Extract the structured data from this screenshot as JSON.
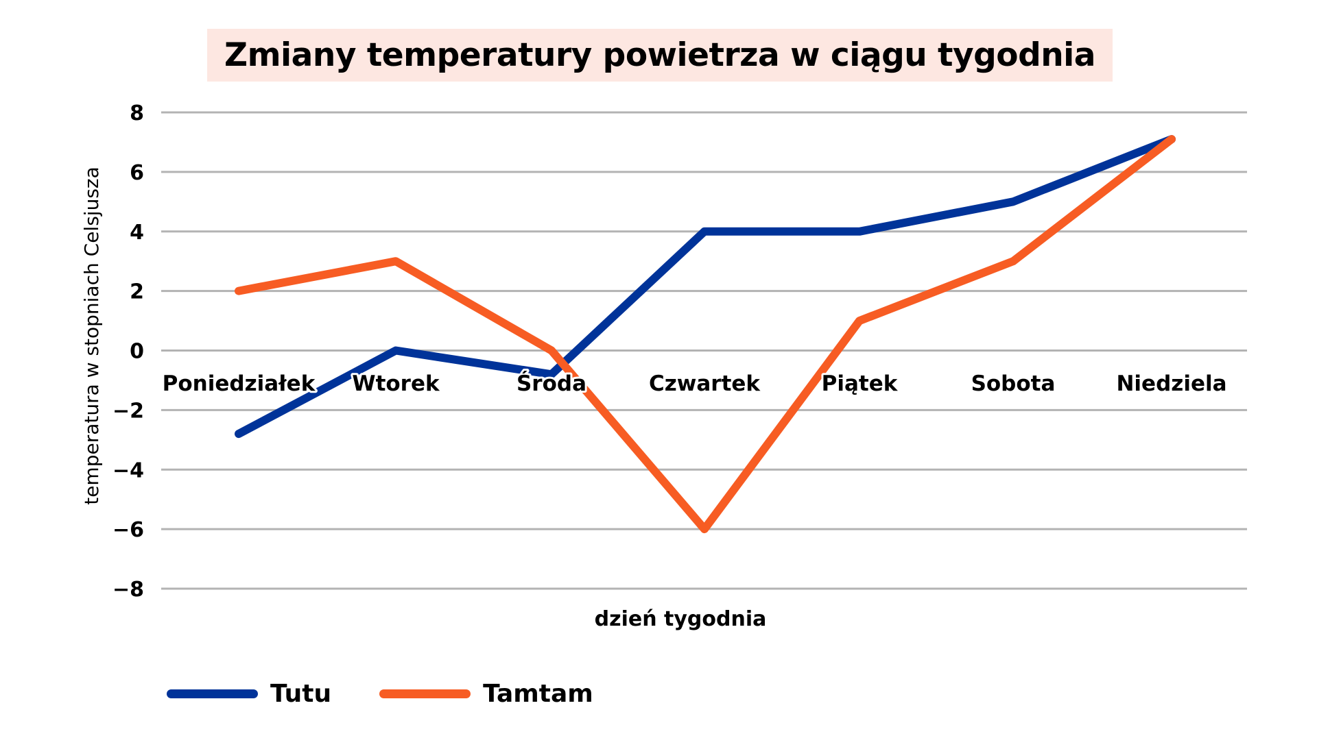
{
  "chart_data": {
    "type": "line",
    "title": "Zmiany temperatury powietrza w ciągu tygodnia",
    "xlabel": "dzień tygodnia",
    "ylabel": "temperatura w stopniach Celsjusza",
    "categories": [
      "Poniedziałek",
      "Wtorek",
      "Środa",
      "Czwartek",
      "Piątek",
      "Sobota",
      "Niedziela"
    ],
    "series": [
      {
        "name": "Tutu",
        "color": "#003399",
        "values": [
          -2.8,
          0,
          -0.8,
          4,
          4,
          5,
          7.1
        ]
      },
      {
        "name": "Tamtam",
        "color": "#f75c23",
        "values": [
          2,
          3,
          0,
          -6,
          1,
          3,
          7.1
        ]
      }
    ],
    "ylim": [
      -8,
      8
    ],
    "yticks": [
      8,
      6,
      4,
      2,
      0,
      -2,
      -4,
      -6,
      -8
    ],
    "ytick_labels": [
      "8",
      "6",
      "4",
      "2",
      "0",
      "−2",
      "−4",
      "−6",
      "−8"
    ],
    "grid": true,
    "legend_position": "bottom-left",
    "category_labels_position": "below zero line"
  },
  "colors": {
    "title_background": "#fde7e1",
    "grid": "#b3b3b3",
    "text": "#000000"
  },
  "legend": [
    {
      "label": "Tutu",
      "color": "#003399"
    },
    {
      "label": "Tamtam",
      "color": "#f75c23"
    }
  ]
}
